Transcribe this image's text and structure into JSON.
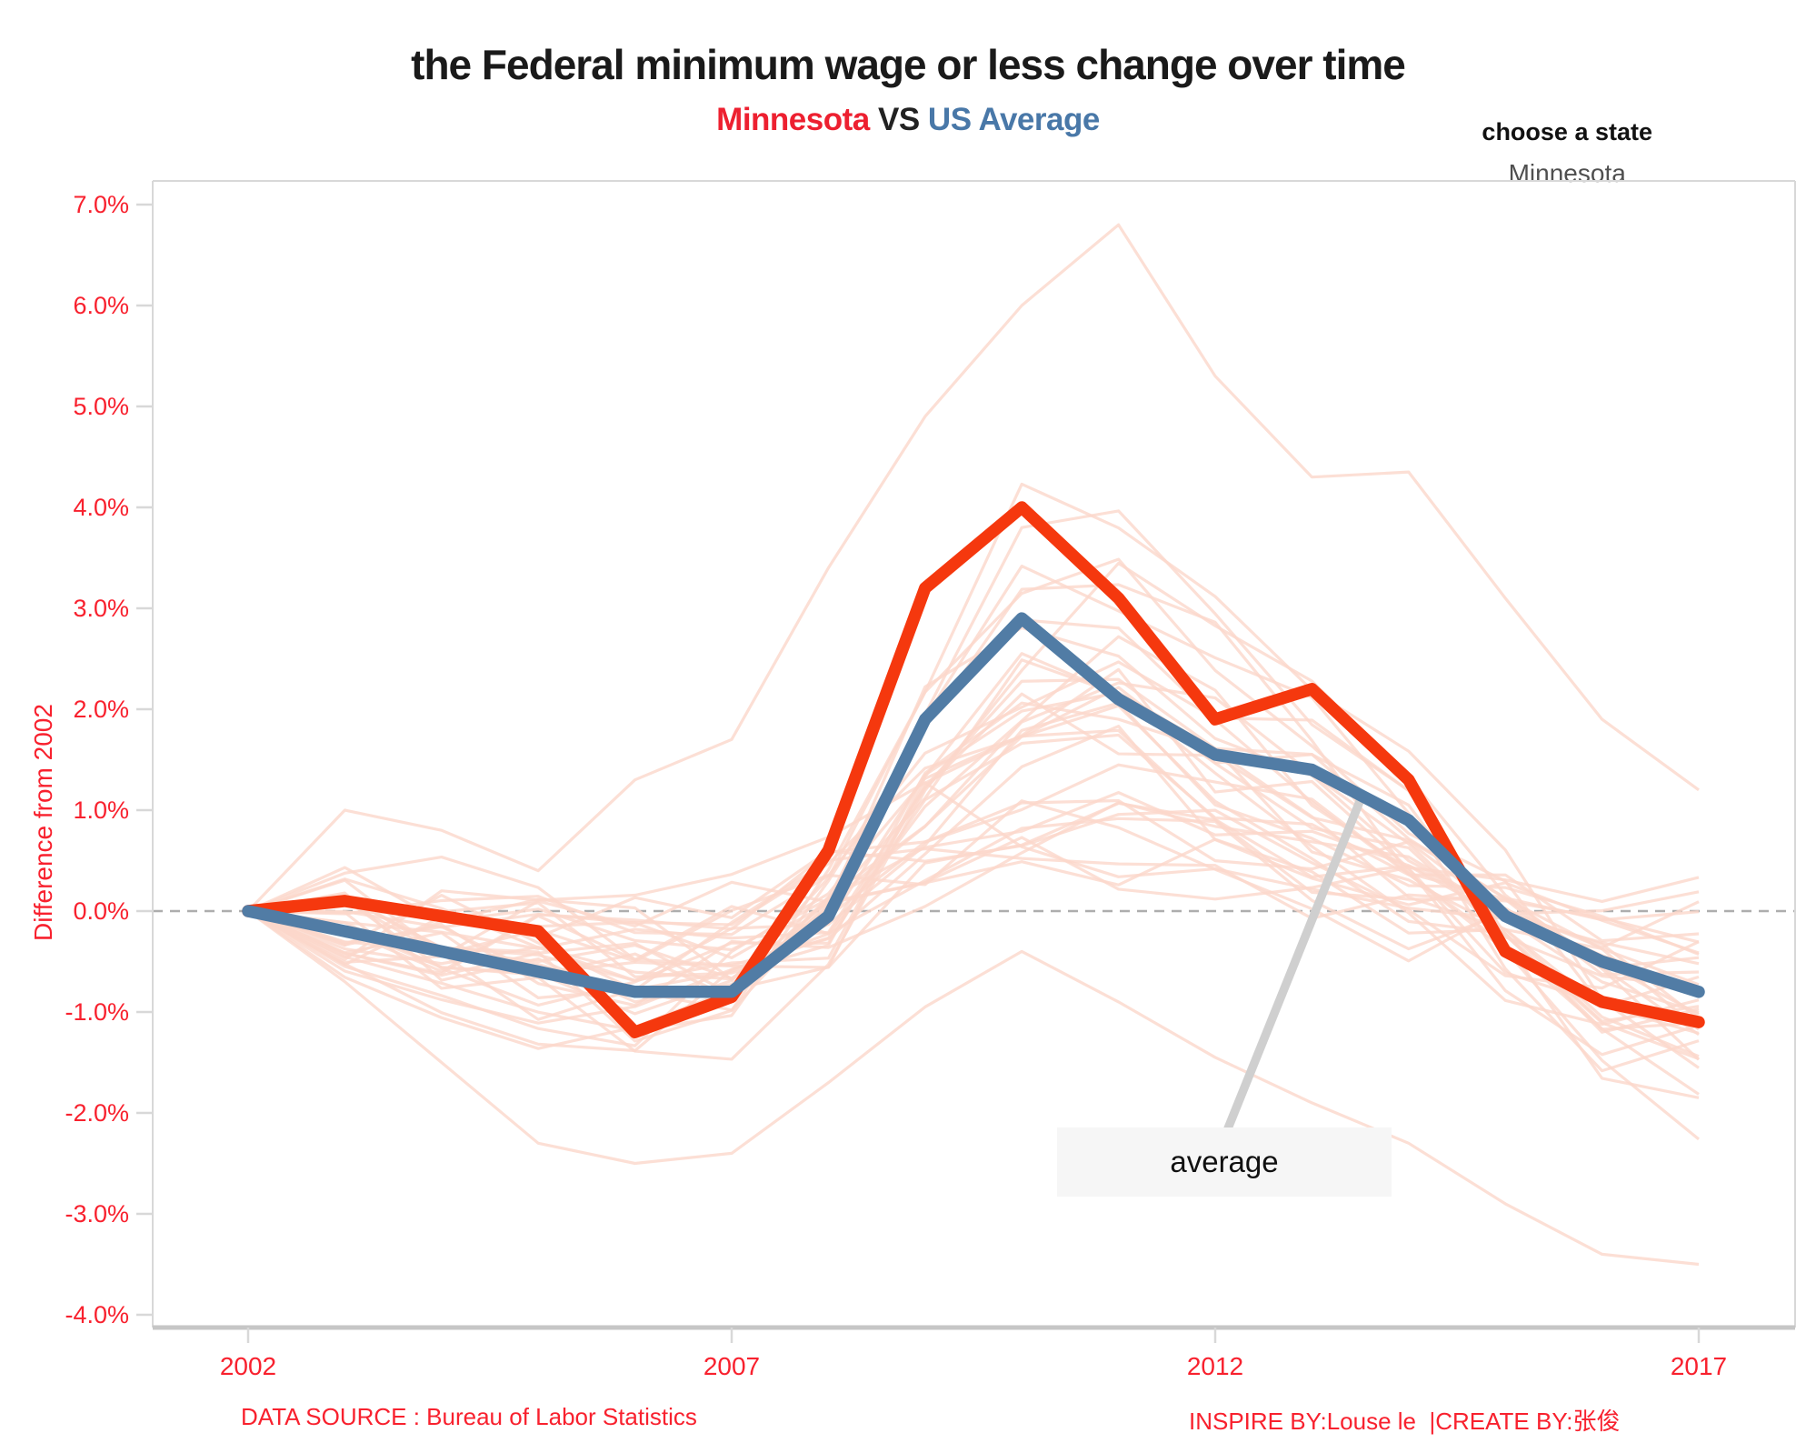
{
  "title": "the Federal minimum wage or less change over time",
  "subtitle": {
    "state": "Minnesota",
    "vs": "VS",
    "average": "US Average"
  },
  "state_selector": {
    "label": "choose a state",
    "value": "Minnesota"
  },
  "annotation": {
    "label": "average"
  },
  "y_axis": {
    "title": "Difference from 2002",
    "ticks": [
      "7.0%",
      "6.0%",
      "5.0%",
      "4.0%",
      "3.0%",
      "2.0%",
      "1.0%",
      "0.0%",
      "-1.0%",
      "-2.0%",
      "-3.0%",
      "-4.0%"
    ]
  },
  "x_axis": {
    "ticks": [
      "2002",
      "2007",
      "2012",
      "2017"
    ]
  },
  "credits": {
    "left": "DATA SOURCE : Bureau of Labor Statistics",
    "right": "INSPIRE BY:Louse le  |CREATE BY:张俊"
  },
  "colors": {
    "line_red": "#f5380e",
    "line_blue": "#517ca5",
    "background_pink": "#fbd7cb",
    "label_red": "#f8212e",
    "subtitle_blue": "#4978a8",
    "grid_gray": "#d8d8d8",
    "axis_gray": "#c6c6c6",
    "zero_dash": "#adadad",
    "callout_gray": "#cfcfcf",
    "annotation_bg": "#f6f6f6"
  },
  "chart_data": {
    "type": "line",
    "title": "the Federal minimum wage or less change over time",
    "subtitle": "Minnesota VS US Average",
    "ylabel": "Difference from 2002",
    "ylim": [
      -4.0,
      7.0
    ],
    "y_tick_step": 1.0,
    "y_tick_format": "percent",
    "grid": false,
    "zero_line": "dashed",
    "x": [
      2002,
      2003,
      2004,
      2005,
      2006,
      2007,
      2008,
      2009,
      2010,
      2011,
      2012,
      2013,
      2014,
      2015,
      2016,
      2017
    ],
    "x_labeled_ticks": [
      2002,
      2007,
      2012,
      2017
    ],
    "series": [
      {
        "name": "Minnesota",
        "color": "#f5380e",
        "values": [
          0.0,
          0.1,
          -0.05,
          -0.2,
          -1.2,
          -0.85,
          0.6,
          3.2,
          4.0,
          3.1,
          1.9,
          2.2,
          1.3,
          -0.4,
          -0.9,
          -1.1
        ]
      },
      {
        "name": "US Average",
        "color": "#517ca5",
        "values": [
          0.0,
          -0.2,
          -0.4,
          -0.6,
          -0.8,
          -0.8,
          -0.05,
          1.9,
          2.9,
          2.1,
          1.55,
          1.4,
          0.9,
          -0.05,
          -0.5,
          -0.8
        ]
      }
    ],
    "annotation": {
      "label": "average",
      "attached_to": "US Average",
      "x": 2013.5,
      "y": 1.1
    },
    "background_lines": {
      "description": "faint lines for the other US states, all starting at 0% in 2002",
      "count": 36,
      "seed": 11,
      "color": "#fbd7cb",
      "pattern": [
        0,
        -0.15,
        -0.35,
        -0.55,
        -0.65,
        -0.55,
        0.1,
        1.4,
        2.3,
        2.4,
        1.7,
        1.25,
        0.65,
        -0.1,
        -0.7,
        -1.0
      ],
      "envelope_max": [
        0,
        1.3,
        1.2,
        0.9,
        1.7,
        1.9,
        3.6,
        5.0,
        6.1,
        6.9,
        5.6,
        4.6,
        4.4,
        3.2,
        2.0,
        1.3
      ],
      "envelope_min": [
        0,
        -0.9,
        -1.7,
        -2.4,
        -2.7,
        -2.7,
        -2.1,
        -1.6,
        -1.1,
        -1.3,
        -1.6,
        -2.0,
        -2.4,
        -3.1,
        -3.5,
        -3.6
      ],
      "explicit": [
        [
          0,
          1.0,
          0.8,
          0.4,
          1.3,
          1.7,
          3.4,
          4.9,
          6.0,
          6.8,
          5.3,
          4.3,
          4.35,
          3.1,
          1.9,
          1.2
        ],
        [
          0,
          -0.7,
          -1.5,
          -2.3,
          -2.5,
          -2.4,
          -1.7,
          -0.95,
          -0.4,
          -0.9,
          -1.45,
          -1.9,
          -2.3,
          -2.9,
          -3.4,
          -3.5
        ]
      ]
    }
  }
}
